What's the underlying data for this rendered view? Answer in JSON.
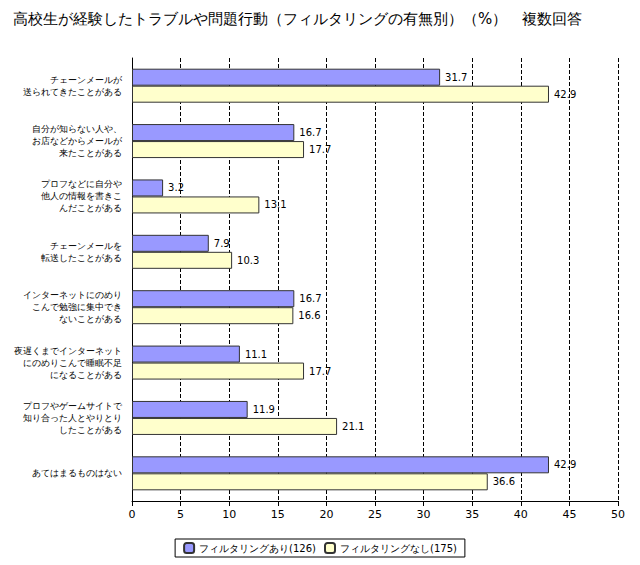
{
  "chart_data": {
    "type": "bar",
    "orientation": "horizontal",
    "title": "高校生が経験したトラブルや問題行動（フィルタリングの有無別）（%）　複数回答",
    "categories": [
      "チェーンメールが\n送られてきたことがある",
      "自分が知らない人や、\nお店などからメールが\n来たことがある",
      "プロフなどに自分や\n他人の情報を書きこ\nんだことがある",
      "チェーンメールを\n転送したことがある",
      "インターネットにのめり\nこんで勉強に集中でき\nないことがある",
      "夜遅くまでインターネット\nにのめりこんで睡眠不足\nになることがある",
      "プロフやゲームサイトで\n知り合った人とやりとり\nしたことがある",
      "あてはまるものはない"
    ],
    "series": [
      {
        "name": "フィルタリングあり(126)",
        "color": "#9999ff",
        "values": [
          31.7,
          16.7,
          3.2,
          7.9,
          16.7,
          11.1,
          11.9,
          42.9
        ]
      },
      {
        "name": "フィルタリングなし(175)",
        "color": "#ffffcc",
        "values": [
          42.9,
          17.7,
          13.1,
          10.3,
          16.6,
          17.7,
          21.1,
          36.6
        ]
      }
    ],
    "xlim": [
      0,
      50
    ],
    "xticks": [
      0,
      5,
      10,
      15,
      20,
      25,
      30,
      35,
      40,
      45,
      50
    ],
    "grid": true,
    "legend": "bottom",
    "data_labels": true
  }
}
